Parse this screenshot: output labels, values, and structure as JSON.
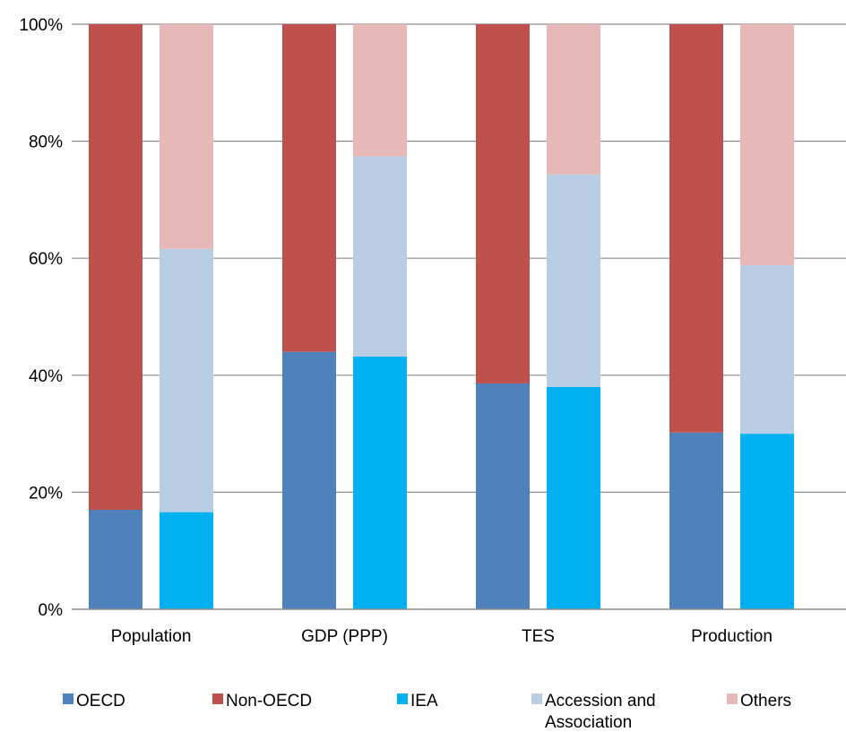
{
  "chart_data": {
    "type": "bar",
    "stacked": true,
    "categories": [
      "Population",
      "GDP (PPP)",
      "TES",
      "Production"
    ],
    "ylim": [
      0,
      100
    ],
    "y_ticks": [
      "0%",
      "20%",
      "40%",
      "60%",
      "80%",
      "100%"
    ],
    "grid": true,
    "legend_position": "bottom",
    "left_bars": [
      {
        "name": "OECD",
        "color": "#4F81BD",
        "values": [
          17,
          44,
          38.6,
          30.2
        ]
      },
      {
        "name": "Non-OECD",
        "color": "#C0504D",
        "values": [
          83,
          56,
          61.4,
          69.8
        ]
      }
    ],
    "right_bars": [
      {
        "name": "IEA",
        "color": "#00B0F0",
        "values": [
          16.6,
          43.2,
          38,
          30
        ]
      },
      {
        "name": "Accession and Association",
        "color": "#B9CDE5",
        "values": [
          45,
          34.2,
          36.3,
          28.8
        ]
      },
      {
        "name": "Others",
        "color": "#E6B9B8",
        "values": [
          38.4,
          22.6,
          25.7,
          41.2
        ]
      }
    ],
    "legend": [
      {
        "lines": [
          "OECD"
        ],
        "color": "#4F81BD"
      },
      {
        "lines": [
          "Non-OECD"
        ],
        "color": "#C0504D"
      },
      {
        "lines": [
          "IEA"
        ],
        "color": "#00B0F0"
      },
      {
        "lines": [
          "Accession and",
          "Association"
        ],
        "color": "#B9CDE5"
      },
      {
        "lines": [
          "Others"
        ],
        "color": "#E6B9B8"
      }
    ]
  }
}
